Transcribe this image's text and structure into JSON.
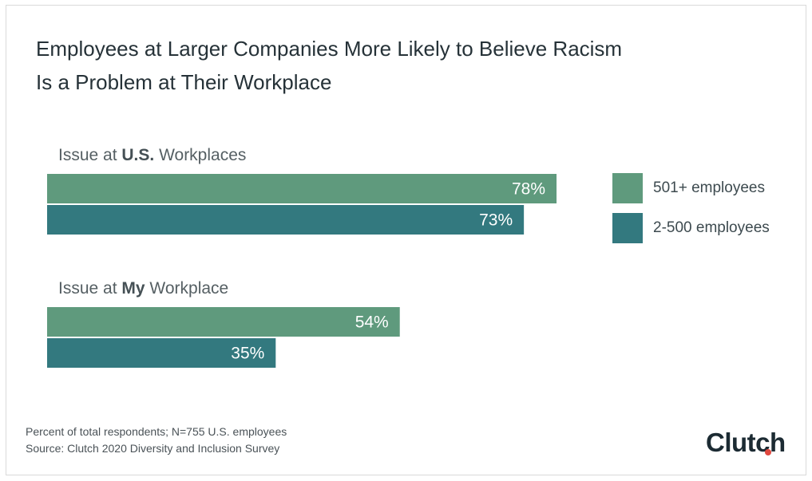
{
  "colors": {
    "series_large": "#5f9a7d",
    "series_small": "#33797f",
    "title": "#263238",
    "brand_accent": "#e0483f"
  },
  "header": {
    "title_line1": "Employees at Larger Companies More Likely to Believe Racism",
    "title_line2": "Is a Problem at Their Workplace"
  },
  "groups": [
    {
      "prefix": "Issue at ",
      "bold": "U.S.",
      "suffix": " Workplaces"
    },
    {
      "prefix": "Issue at ",
      "bold": "My",
      "suffix": " Workplace"
    }
  ],
  "legend": {
    "items": [
      {
        "label": "501+ employees",
        "color": "#5f9a7d"
      },
      {
        "label": "2-500 employees",
        "color": "#33797f"
      }
    ]
  },
  "footer": {
    "note": "Percent of total respondents; N=755 U.S. employees",
    "source": "Source: Clutch 2020 Diversity and Inclusion Survey",
    "brand": "Clutch"
  },
  "chart_data": {
    "type": "bar",
    "orientation": "horizontal",
    "categories": [
      "Issue at U.S. Workplaces",
      "Issue at My Workplace"
    ],
    "series": [
      {
        "name": "501+ employees",
        "values": [
          78,
          54
        ],
        "labels": [
          "78%",
          "54%"
        ]
      },
      {
        "name": "2-500 employees",
        "values": [
          73,
          35
        ],
        "labels": [
          "73%",
          "35%"
        ]
      }
    ],
    "unit": "%",
    "xlim": [
      0,
      100
    ],
    "grid": false,
    "legend_position": "right"
  }
}
